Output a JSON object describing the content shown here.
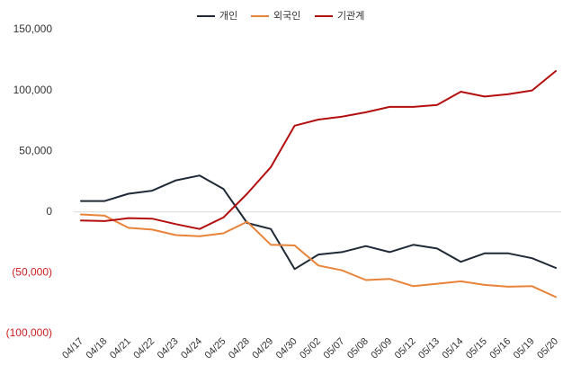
{
  "chart_data": {
    "type": "line",
    "categories": [
      "04/17",
      "04/18",
      "04/21",
      "04/22",
      "04/23",
      "04/24",
      "04/25",
      "04/28",
      "04/29",
      "04/30",
      "05/02",
      "05/07",
      "05/08",
      "05/09",
      "05/12",
      "05/13",
      "05/14",
      "05/15",
      "05/16",
      "05/19",
      "05/20"
    ],
    "series": [
      {
        "name": "개인",
        "color": "#1f2a36",
        "values": [
          9000,
          9000,
          15000,
          17500,
          26000,
          30000,
          19000,
          -9000,
          -14000,
          -47000,
          -35000,
          -33000,
          -28000,
          -33000,
          -27000,
          -30000,
          -41000,
          -34000,
          -34000,
          -38000,
          -46000
        ]
      },
      {
        "name": "외국인",
        "color": "#e8833a",
        "values": [
          -2000,
          -3000,
          -13000,
          -14500,
          -19000,
          -20000,
          -17500,
          -8000,
          -27000,
          -27500,
          -44000,
          -48000,
          -56000,
          -55000,
          -61000,
          -59000,
          -57000,
          -60000,
          -61500,
          -61000,
          -70000
        ]
      },
      {
        "name": "기관계",
        "color": "#b30f0f",
        "values": [
          -7000,
          -7500,
          -5000,
          -5500,
          -10000,
          -14000,
          -4500,
          15000,
          37000,
          71000,
          76000,
          78500,
          82000,
          86500,
          86500,
          88000,
          99000,
          95000,
          97000,
          100000,
          116000
        ]
      }
    ],
    "yticks": [
      {
        "value": 150000,
        "label": "150,000",
        "color": "#333333"
      },
      {
        "value": 100000,
        "label": "100,000",
        "color": "#333333"
      },
      {
        "value": 50000,
        "label": "50,000",
        "color": "#333333"
      },
      {
        "value": 0,
        "label": "0",
        "color": "#333333"
      },
      {
        "value": -50000,
        "label": "(50,000)",
        "color": "#cc1f1f"
      },
      {
        "value": -100000,
        "label": "(100,000)",
        "color": "#cc1f1f"
      }
    ],
    "ylim": [
      -100000,
      150000
    ],
    "legend_position": "top-center",
    "grid": false,
    "zero_line_color": "#d9d9d9"
  }
}
